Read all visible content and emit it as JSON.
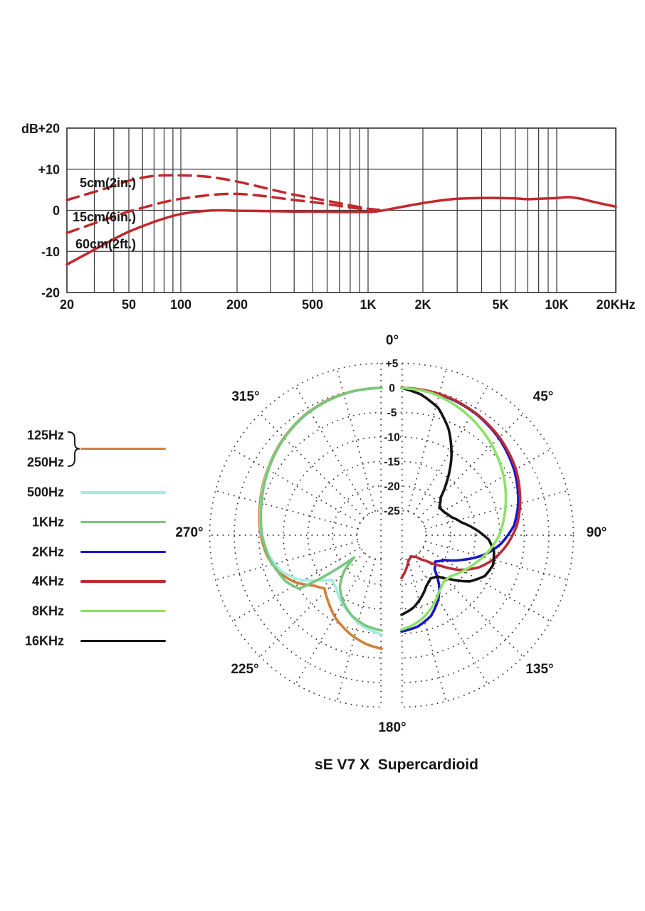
{
  "chart_data": [
    {
      "type": "line",
      "name": "frequency-response",
      "line_color": "#c2282d",
      "grid_color": "#3c3c3c",
      "y_axis": {
        "unit": "dB",
        "range": [
          -20,
          20
        ],
        "ticks": [
          {
            "value": 20,
            "label": "+20"
          },
          {
            "value": 10,
            "label": "+10"
          },
          {
            "value": 0,
            "label": "0"
          },
          {
            "value": -10,
            "label": "-10"
          },
          {
            "value": -20,
            "label": "-20"
          }
        ]
      },
      "x_axis": {
        "scale": "log",
        "range": [
          20,
          20000
        ],
        "ticks": [
          {
            "value": 20,
            "label": "20"
          },
          {
            "value": 50,
            "label": "50"
          },
          {
            "value": 100,
            "label": "100"
          },
          {
            "value": 200,
            "label": "200"
          },
          {
            "value": 500,
            "label": "500"
          },
          {
            "value": 1000,
            "label": "1K"
          },
          {
            "value": 2000,
            "label": "2K"
          },
          {
            "value": 5000,
            "label": "5K"
          },
          {
            "value": 10000,
            "label": "10K"
          },
          {
            "value": 20000,
            "label": "20KHz"
          }
        ],
        "minor_gridlines": [
          30,
          40,
          50,
          60,
          70,
          80,
          90,
          100,
          200,
          300,
          400,
          500,
          600,
          700,
          800,
          900,
          1000,
          2000,
          3000,
          4000,
          5000,
          6000,
          7000,
          8000,
          9000,
          10000
        ]
      },
      "series": [
        {
          "name": "5cm(2in.)",
          "line_style": "dashed",
          "points": [
            [
              20,
              2.5
            ],
            [
              25,
              3.6
            ],
            [
              32,
              4.8
            ],
            [
              40,
              6.0
            ],
            [
              50,
              7.2
            ],
            [
              65,
              8.2
            ],
            [
              80,
              8.5
            ],
            [
              100,
              8.5
            ],
            [
              130,
              8.3
            ],
            [
              160,
              7.8
            ],
            [
              200,
              7.0
            ],
            [
              260,
              5.8
            ],
            [
              320,
              4.8
            ],
            [
              400,
              3.8
            ],
            [
              500,
              3.0
            ],
            [
              650,
              2.0
            ],
            [
              800,
              1.2
            ],
            [
              1000,
              0.4
            ],
            [
              1150,
              0.1
            ]
          ]
        },
        {
          "name": "15cm(6in.)",
          "line_style": "dashed",
          "points": [
            [
              20,
              -5.5
            ],
            [
              25,
              -4.2
            ],
            [
              32,
              -2.8
            ],
            [
              40,
              -1.5
            ],
            [
              50,
              -0.3
            ],
            [
              65,
              1.0
            ],
            [
              80,
              2.0
            ],
            [
              100,
              2.8
            ],
            [
              130,
              3.5
            ],
            [
              160,
              3.9
            ],
            [
              200,
              4.0
            ],
            [
              260,
              3.6
            ],
            [
              320,
              3.1
            ],
            [
              400,
              2.5
            ],
            [
              500,
              2.0
            ],
            [
              650,
              1.3
            ],
            [
              800,
              0.7
            ],
            [
              1000,
              0.2
            ],
            [
              1150,
              0.0
            ]
          ]
        },
        {
          "name": "60cm(2ft.)",
          "line_style": "solid",
          "points": [
            [
              20,
              -13.2
            ],
            [
              25,
              -11.2
            ],
            [
              32,
              -9.0
            ],
            [
              40,
              -7.0
            ],
            [
              50,
              -5.2
            ],
            [
              65,
              -3.3
            ],
            [
              80,
              -2.0
            ],
            [
              100,
              -0.9
            ],
            [
              130,
              -0.2
            ],
            [
              160,
              0.0
            ],
            [
              200,
              -0.1
            ],
            [
              300,
              -0.2
            ],
            [
              400,
              -0.3
            ],
            [
              500,
              -0.3
            ],
            [
              700,
              -0.4
            ],
            [
              900,
              -0.4
            ],
            [
              1100,
              -0.3
            ],
            [
              1400,
              0.5
            ],
            [
              1800,
              1.4
            ],
            [
              2300,
              2.2
            ],
            [
              3000,
              2.8
            ],
            [
              4000,
              3.0
            ],
            [
              5000,
              3.0
            ],
            [
              6000,
              2.9
            ],
            [
              7000,
              2.7
            ],
            [
              8000,
              2.8
            ],
            [
              9000,
              2.9
            ],
            [
              10000,
              3.0
            ],
            [
              11500,
              3.2
            ],
            [
              13000,
              2.9
            ],
            [
              15000,
              2.2
            ],
            [
              17000,
              1.6
            ],
            [
              20000,
              0.9
            ]
          ]
        }
      ]
    },
    {
      "type": "polar",
      "name": "polar-pattern",
      "title": "sE V7 X  Supercardioid",
      "grid_dot_color": "#2b2b2b",
      "radial_axis": {
        "unit": "dB",
        "center_db": -30,
        "rings": [
          {
            "value": 5,
            "label": "+5"
          },
          {
            "value": 0,
            "label": "0"
          },
          {
            "value": -5,
            "label": "-5"
          },
          {
            "value": -10,
            "label": "-10"
          },
          {
            "value": -15,
            "label": "-15"
          },
          {
            "value": -20,
            "label": "-20"
          },
          {
            "value": -25,
            "label": "-25"
          }
        ]
      },
      "angle_labels": [
        {
          "angle": 0,
          "label": "0°"
        },
        {
          "angle": 45,
          "label": "45°"
        },
        {
          "angle": 90,
          "label": "90°"
        },
        {
          "angle": 135,
          "label": "135°"
        },
        {
          "angle": 180,
          "label": "180°"
        },
        {
          "angle": 225,
          "label": "225°"
        },
        {
          "angle": 270,
          "label": "270°"
        },
        {
          "angle": 315,
          "label": "315°"
        }
      ],
      "series": [
        {
          "name": "125Hz/250Hz",
          "color": "#d08038",
          "side": "left",
          "points": [
            [
              0,
              0
            ],
            [
              12,
              -0.1
            ],
            [
              22,
              -0.4
            ],
            [
              32,
              -0.9
            ],
            [
              45,
              -1.9
            ],
            [
              60,
              -3.2
            ],
            [
              75,
              -4.4
            ],
            [
              90,
              -5.4
            ],
            [
              100,
              -6.3
            ],
            [
              110,
              -7.8
            ],
            [
              118,
              -9.8
            ],
            [
              127,
              -12.9
            ],
            [
              133,
              -14.1
            ],
            [
              141,
              -12.7
            ],
            [
              151,
              -10.7
            ],
            [
              163,
              -8.8
            ],
            [
              172,
              -7.6
            ],
            [
              180,
              -6.9
            ]
          ]
        },
        {
          "name": "500Hz",
          "color": "#a6ece4",
          "side": "left",
          "points": [
            [
              0,
              0
            ],
            [
              12,
              -0.15
            ],
            [
              22,
              -0.5
            ],
            [
              32,
              -1.0
            ],
            [
              45,
              -2.0
            ],
            [
              60,
              -3.3
            ],
            [
              75,
              -4.6
            ],
            [
              90,
              -5.6
            ],
            [
              100,
              -6.7
            ],
            [
              110,
              -8.4
            ],
            [
              118,
              -10.8
            ],
            [
              126,
              -14.4
            ],
            [
              132,
              -16.4
            ],
            [
              139,
              -15.9
            ],
            [
              147,
              -14.4
            ],
            [
              157,
              -12.9
            ],
            [
              168,
              -11.1
            ],
            [
              180,
              -9.8
            ]
          ]
        },
        {
          "name": "1KHz",
          "color": "#79c77d",
          "side": "left",
          "points": [
            [
              0,
              0
            ],
            [
              12,
              -0.15
            ],
            [
              22,
              -0.5
            ],
            [
              32,
              -1.0
            ],
            [
              45,
              -2.0
            ],
            [
              60,
              -3.4
            ],
            [
              75,
              -4.7
            ],
            [
              90,
              -5.7
            ],
            [
              100,
              -6.5
            ],
            [
              108,
              -7.4
            ],
            [
              116,
              -8.4
            ],
            [
              123,
              -10.0
            ],
            [
              129,
              -22.8
            ],
            [
              134,
              -19.3
            ],
            [
              141,
              -16.5
            ],
            [
              150,
              -14.3
            ],
            [
              160,
              -12.5
            ],
            [
              170,
              -11.3
            ],
            [
              180,
              -10.6
            ]
          ]
        },
        {
          "name": "2KHz",
          "color": "#1b16c8",
          "side": "right",
          "points": [
            [
              0,
              0
            ],
            [
              12,
              -0.2
            ],
            [
              22,
              -0.55
            ],
            [
              32,
              -1.05
            ],
            [
              45,
              -2.0
            ],
            [
              60,
              -3.5
            ],
            [
              75,
              -5.4
            ],
            [
              85,
              -7.0
            ],
            [
              95,
              -9.7
            ],
            [
              103,
              -12.6
            ],
            [
              112,
              -16.6
            ],
            [
              120,
              -19.9
            ],
            [
              128,
              -21.3
            ],
            [
              136,
              -20.3
            ],
            [
              143,
              -17.3
            ],
            [
              150,
              -15.0
            ],
            [
              160,
              -12.5
            ],
            [
              170,
              -11.1
            ],
            [
              180,
              -10.4
            ]
          ]
        },
        {
          "name": "4KHz",
          "color": "#bb2c34",
          "side": "right",
          "points": [
            [
              0,
              0
            ],
            [
              12,
              -0.15
            ],
            [
              22,
              -0.45
            ],
            [
              32,
              -0.95
            ],
            [
              45,
              -1.8
            ],
            [
              60,
              -3.1
            ],
            [
              75,
              -5.0
            ],
            [
              85,
              -6.4
            ],
            [
              95,
              -8.4
            ],
            [
              105,
              -10.7
            ],
            [
              113,
              -13.1
            ],
            [
              121,
              -16.3
            ],
            [
              128,
              -19.9
            ],
            [
              136,
              -22.7
            ],
            [
              146,
              -24.7
            ],
            [
              156,
              -25.3
            ],
            [
              165,
              -24.6
            ],
            [
              172,
              -23.1
            ],
            [
              180,
              -21.3
            ]
          ]
        },
        {
          "name": "8KHz",
          "color": "#8de166",
          "side": "right",
          "points": [
            [
              0,
              0
            ],
            [
              12,
              -0.4
            ],
            [
              22,
              -1.3
            ],
            [
              32,
              -2.4
            ],
            [
              45,
              -4.0
            ],
            [
              60,
              -6.0
            ],
            [
              75,
              -8.1
            ],
            [
              90,
              -10.1
            ],
            [
              100,
              -11.9
            ],
            [
              110,
              -13.8
            ],
            [
              120,
              -15.5
            ],
            [
              130,
              -17.0
            ],
            [
              137,
              -17.3
            ],
            [
              146,
              -16.3
            ],
            [
              156,
              -14.3
            ],
            [
              166,
              -12.5
            ],
            [
              174,
              -11.4
            ],
            [
              180,
              -10.8
            ]
          ]
        },
        {
          "name": "16KHz",
          "color": "#141414",
          "side": "right",
          "points": [
            [
              0,
              0
            ],
            [
              8,
              -1.1
            ],
            [
              16,
              -3.0
            ],
            [
              24,
              -6.4
            ],
            [
              32,
              -10.8
            ],
            [
              40,
              -15.6
            ],
            [
              46,
              -18.9
            ],
            [
              54,
              -20.5
            ],
            [
              62,
              -20.1
            ],
            [
              70,
              -19.2
            ],
            [
              78,
              -17.5
            ],
            [
              86,
              -14.7
            ],
            [
              93,
              -12.2
            ],
            [
              100,
              -10.9
            ],
            [
              108,
              -10.4
            ],
            [
              116,
              -11.1
            ],
            [
              124,
              -13.2
            ],
            [
              132,
              -16.6
            ],
            [
              139,
              -18.9
            ],
            [
              146,
              -19.4
            ],
            [
              154,
              -18.5
            ],
            [
              162,
              -16.8
            ],
            [
              171,
              -15.0
            ],
            [
              180,
              -13.8
            ]
          ]
        }
      ],
      "legend": {
        "rows": [
          {
            "labels": [
              "125Hz",
              "250Hz"
            ],
            "grouped": true,
            "color": "#d08038"
          },
          {
            "labels": [
              "500Hz"
            ],
            "grouped": false,
            "color": "#a6ece4"
          },
          {
            "labels": [
              "1KHz"
            ],
            "grouped": false,
            "color": "#79c77d"
          },
          {
            "labels": [
              "2KHz"
            ],
            "grouped": false,
            "color": "#1b16c8"
          },
          {
            "labels": [
              "4KHz"
            ],
            "grouped": false,
            "color": "#bb2c34"
          },
          {
            "labels": [
              "8KHz"
            ],
            "grouped": false,
            "color": "#8de166"
          },
          {
            "labels": [
              "16KHz"
            ],
            "grouped": false,
            "color": "#141414"
          }
        ]
      }
    }
  ]
}
